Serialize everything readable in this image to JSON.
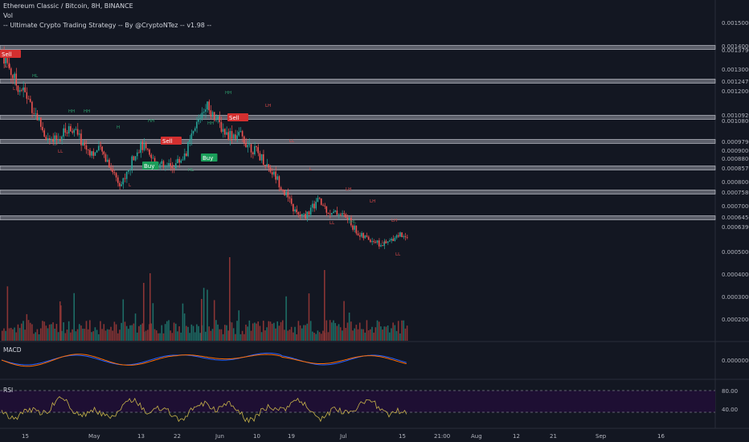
{
  "header": {
    "symbol": "Ethereum Classic / Bitcoin, 8H, BINANCE",
    "vol_label": "Vol",
    "strategy": "-- Ultimate Crypto Trading Strategy -- By @CryptoNTez -- v1.98 --"
  },
  "panes": {
    "macd_label": "MACD",
    "rsi_label": "RSI"
  },
  "colors": {
    "background": "#131722",
    "up": "#26a69a",
    "down": "#ef5350",
    "level_line": "#d1d4dc",
    "macd": "#2962ff",
    "signal": "#ff6d00",
    "rsi": "#c8b34a",
    "rsi_band": "#1e0f33"
  },
  "chart_data": {
    "type": "candlestick",
    "interval": "8H",
    "y_axis_labels": [
      "0.00150000",
      "0.00140000",
      "0.00137900",
      "0.00130000",
      "0.00124700",
      "0.00120000",
      "0.00109200",
      "0.00108000",
      "0.00097900",
      "0.00090000",
      "0.00088000",
      "0.00085700",
      "0.00080000",
      "0.00075800",
      "0.00070000",
      "0.00064500",
      "0.00063900",
      "0.00050000",
      "0.00040000",
      "0.00030000",
      "0.00020000"
    ],
    "price_levels": [
      0.0014,
      0.001247,
      0.001092,
      0.000979,
      0.000857,
      0.000758,
      0.000645
    ],
    "x_axis_labels": [
      "15",
      "May",
      "13",
      "22",
      "Jun",
      "10",
      "19",
      "Jul",
      "15",
      "21:00",
      "Aug",
      "12",
      "21",
      "Sep",
      "16"
    ],
    "macd_axis_label": "0.00000000",
    "rsi_axis_labels": [
      "80.00",
      "40.00"
    ],
    "signals": [
      {
        "label": "Sell"
      },
      {
        "label": "Buy"
      },
      {
        "label": "Sell"
      },
      {
        "label": "Buy"
      },
      {
        "label": "Sell"
      }
    ],
    "pivot_labels": [
      "HH",
      "LH",
      "HL",
      "LL",
      "H",
      "L"
    ],
    "close_path": [
      0.00137,
      0.00131,
      0.00124,
      0.00121,
      0.00116,
      0.0011,
      0.00103,
      0.00099,
      0.00101,
      0.00104,
      0.00106,
      0.00101,
      0.00097,
      0.00095,
      0.00096,
      0.00092,
      0.00086,
      0.00082,
      0.00087,
      0.00096,
      0.00098,
      0.00093,
      0.00091,
      0.00089,
      0.00089,
      0.00091,
      0.00094,
      0.00101,
      0.00109,
      0.00116,
      0.00112,
      0.00107,
      0.00103,
      0.00103,
      0.00102,
      0.00099,
      0.00096,
      0.00093,
      0.00089,
      0.00085,
      0.0008,
      0.00074,
      0.00069,
      0.00068,
      0.00071,
      0.00075,
      0.00072,
      0.00069,
      0.0007,
      0.00068,
      0.00064,
      0.0006,
      0.00059,
      0.00058,
      0.00056,
      0.00057,
      0.0006,
      0.00061
    ]
  }
}
